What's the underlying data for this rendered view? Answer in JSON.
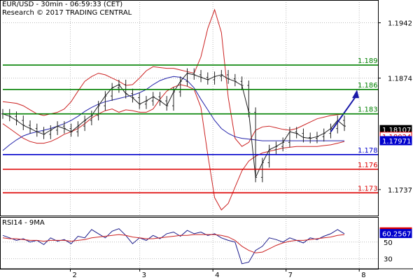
{
  "header": {
    "line1": "EUR/USD - 30min - 06:59:33 (CET)",
    "line2": "Research © 2017 TRADING CENTRAL"
  },
  "chart_data": {
    "type": "line",
    "price_panel": {
      "ylim": [
        1.1705,
        1.197
      ],
      "price_ticks": [
        1.1942,
        1.1874,
        1.1737
      ],
      "levels": [
        {
          "label": "1.189",
          "value": 1.189,
          "color": "#008000"
        },
        {
          "label": "1.186",
          "value": 1.186,
          "color": "#008000"
        },
        {
          "label": "1.183",
          "value": 1.183,
          "color": "#008000"
        },
        {
          "label": "1.178",
          "value": 1.178,
          "color": "#0000cc"
        },
        {
          "label": "1.176",
          "value": 1.1762,
          "color": "#dd0000"
        },
        {
          "label": "1.173",
          "value": 1.1733,
          "color": "#dd0000"
        }
      ],
      "value_tags": [
        {
          "label": "1.18107",
          "value": 1.18107,
          "bg": "#000000",
          "fg": "#ffffff"
        },
        {
          "label": "1.18024",
          "value": 1.18024,
          "bg": "#ffffff",
          "fg": "#dd0000"
        },
        {
          "label": "1.17971",
          "value": 1.17971,
          "bg": "#0000cc",
          "fg": "#ffffff"
        }
      ],
      "close": [
        1.183,
        1.1827,
        1.1822,
        1.1816,
        1.1812,
        1.1808,
        1.1805,
        1.181,
        1.1815,
        1.1812,
        1.1808,
        1.1815,
        1.1822,
        1.1828,
        1.184,
        1.1852,
        1.1862,
        1.1866,
        1.1855,
        1.185,
        1.1842,
        1.1846,
        1.1851,
        1.1846,
        1.184,
        1.1857,
        1.187,
        1.188,
        1.1878,
        1.1875,
        1.1872,
        1.1876,
        1.1878,
        1.1873,
        1.187,
        1.1865,
        1.1832,
        1.1752,
        1.177,
        1.1786,
        1.179,
        1.1795,
        1.1808,
        1.1806,
        1.1801,
        1.18,
        1.1802,
        1.1806,
        1.1812,
        1.1822,
        1.1815
      ],
      "bollinger_upper": [
        1.1845,
        1.1844,
        1.1843,
        1.184,
        1.1835,
        1.183,
        1.1828,
        1.183,
        1.1832,
        1.1836,
        1.1845,
        1.1858,
        1.187,
        1.1876,
        1.188,
        1.1878,
        1.1874,
        1.187,
        1.1865,
        1.1866,
        1.1874,
        1.1883,
        1.1888,
        1.1887,
        1.1886,
        1.1886,
        1.1884,
        1.1882,
        1.188,
        1.19,
        1.1935,
        1.1958,
        1.193,
        1.185,
        1.18,
        1.179,
        1.1795,
        1.181,
        1.1814,
        1.1815,
        1.1813,
        1.1811,
        1.181,
        1.1812,
        1.1816,
        1.182,
        1.1824,
        1.1826,
        1.1828,
        1.1829,
        1.183
      ],
      "bollinger_lower": [
        1.1818,
        1.1812,
        1.1806,
        1.18,
        1.1796,
        1.1794,
        1.1794,
        1.1796,
        1.18,
        1.1805,
        1.1808,
        1.1812,
        1.1818,
        1.1825,
        1.183,
        1.1834,
        1.1836,
        1.1832,
        1.1835,
        1.1834,
        1.1832,
        1.1832,
        1.1836,
        1.1848,
        1.1858,
        1.1863,
        1.1866,
        1.1864,
        1.186,
        1.1838,
        1.178,
        1.1727,
        1.1712,
        1.172,
        1.174,
        1.176,
        1.1772,
        1.1778,
        1.1782,
        1.1784,
        1.1786,
        1.1788,
        1.1789,
        1.179,
        1.179,
        1.179,
        1.179,
        1.1791,
        1.1792,
        1.1794,
        1.1796
      ],
      "moving_average": [
        1.1785,
        1.1792,
        1.1798,
        1.1803,
        1.1806,
        1.1808,
        1.181,
        1.1812,
        1.1815,
        1.1818,
        1.1822,
        1.1827,
        1.1833,
        1.1838,
        1.1842,
        1.1845,
        1.1847,
        1.1849,
        1.1851,
        1.1853,
        1.1856,
        1.186,
        1.1866,
        1.1871,
        1.1874,
        1.1876,
        1.1875,
        1.1871,
        1.1862,
        1.1848,
        1.1835,
        1.1822,
        1.1812,
        1.1806,
        1.1802,
        1.18,
        1.1799,
        1.1798,
        1.1797,
        1.1797,
        1.1797,
        1.1797,
        1.1797,
        1.1797,
        1.1797,
        1.1797,
        1.1797,
        1.1797,
        1.1797,
        1.1797,
        1.1797
      ],
      "arrow": {
        "from": [
          0.96,
          1.1808
        ],
        "to": [
          1.0,
          1.1858
        ],
        "color": "#1a1aa8"
      }
    },
    "rsi_panel": {
      "title": "RSI14 - 9MA",
      "ylim": [
        18,
        80
      ],
      "ticks": [
        50,
        30
      ],
      "value_tags": [
        {
          "label": "62.1475",
          "value": 62.1475,
          "bg": "#dd0000",
          "fg": "#ffffff"
        },
        {
          "label": "60.2567",
          "value": 60.2567,
          "bg": "#0000cc",
          "fg": "#ffffff"
        }
      ],
      "rsi": [
        58,
        55,
        52,
        54,
        50,
        52,
        47,
        55,
        51,
        53,
        48,
        57,
        55,
        65,
        60,
        55,
        63,
        66,
        58,
        48,
        55,
        52,
        58,
        54,
        60,
        62,
        57,
        64,
        60,
        62,
        58,
        60,
        55,
        52,
        50,
        24,
        26,
        40,
        45,
        55,
        53,
        50,
        55,
        52,
        49,
        55,
        53,
        57,
        60,
        65,
        60
      ],
      "ma": [
        55,
        54,
        54,
        53,
        52,
        52,
        51,
        52,
        52,
        52,
        51,
        52,
        53,
        55,
        56,
        57,
        58,
        59,
        58,
        56,
        55,
        54,
        54,
        55,
        56,
        57,
        58,
        58,
        59,
        59,
        59,
        59,
        58,
        56,
        52,
        45,
        40,
        37,
        38,
        42,
        46,
        49,
        51,
        52,
        52,
        53,
        54,
        55,
        56,
        58,
        59
      ]
    },
    "x_ticks": [
      "2",
      "3",
      "4",
      "7",
      "8"
    ],
    "x_tick_positions": [
      0.18,
      0.365,
      0.56,
      0.755,
      0.95
    ]
  }
}
